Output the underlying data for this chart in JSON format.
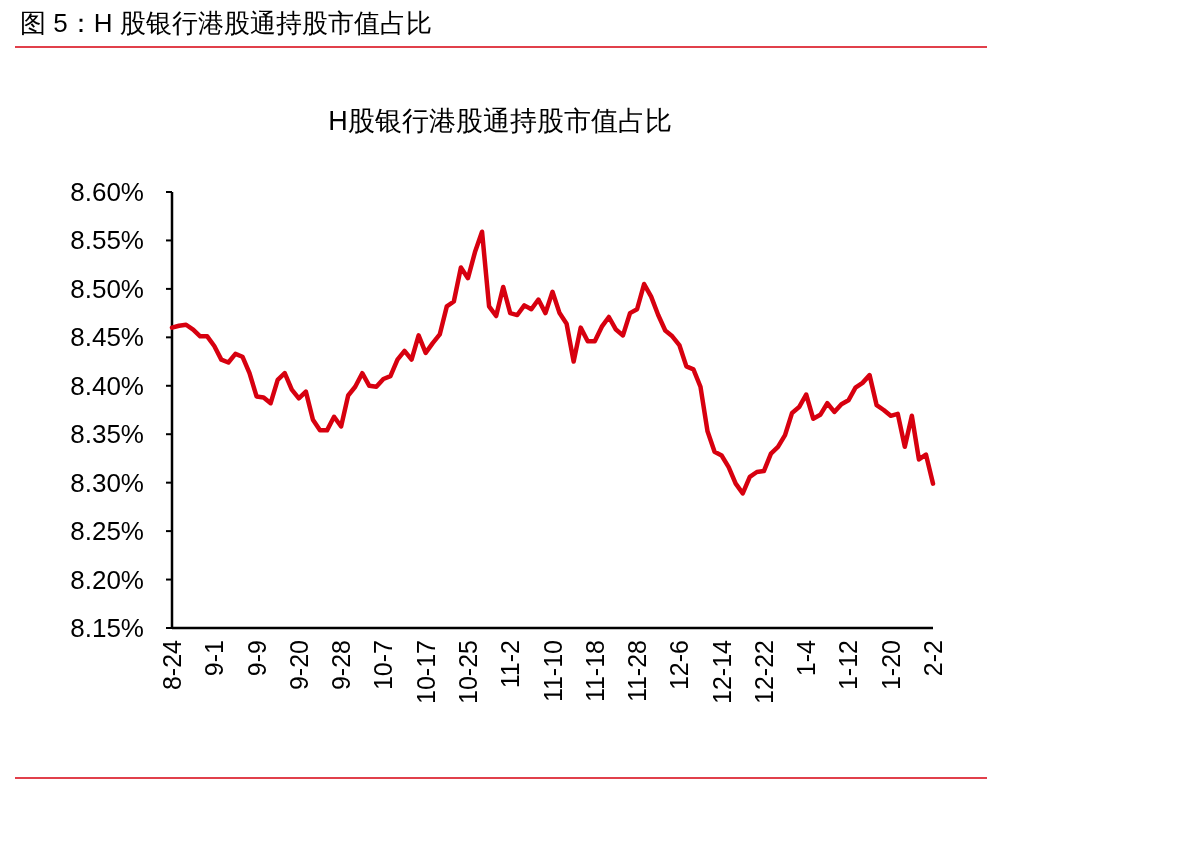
{
  "chart_data": {
    "type": "line",
    "title": "H股银行港股通持股市值占比",
    "annotations": [
      "图 5：H 股银行港股通持股市值占比"
    ],
    "categories": [
      "8-24",
      null,
      null,
      null,
      null,
      null,
      "9-1",
      null,
      null,
      null,
      null,
      null,
      "9-9",
      null,
      null,
      null,
      null,
      null,
      "9-20",
      null,
      null,
      null,
      null,
      null,
      "9-28",
      null,
      null,
      null,
      null,
      null,
      "10-7",
      null,
      null,
      null,
      null,
      null,
      "10-17",
      null,
      null,
      null,
      null,
      null,
      "10-25",
      null,
      null,
      null,
      null,
      null,
      "11-2",
      null,
      null,
      null,
      null,
      null,
      "11-10",
      null,
      null,
      null,
      null,
      null,
      "11-18",
      null,
      null,
      null,
      null,
      null,
      "11-28",
      null,
      null,
      null,
      null,
      null,
      "12-6",
      null,
      null,
      null,
      null,
      null,
      "12-14",
      null,
      null,
      null,
      null,
      null,
      "12-22",
      null,
      null,
      null,
      null,
      null,
      "1-4",
      null,
      null,
      null,
      null,
      null,
      "1-12",
      null,
      null,
      null,
      null,
      null,
      "1-20",
      null,
      null,
      null,
      null,
      null,
      "2-2"
    ],
    "series": [
      {
        "color": "#d7000f",
        "values": [
          8.46,
          8.462,
          8.463,
          8.458,
          8.451,
          8.451,
          8.441,
          8.427,
          8.424,
          8.433,
          8.43,
          8.413,
          8.389,
          8.388,
          8.382,
          8.406,
          8.413,
          8.396,
          8.387,
          8.394,
          8.365,
          8.354,
          8.354,
          8.368,
          8.358,
          8.39,
          8.399,
          8.413,
          8.4,
          8.399,
          8.407,
          8.41,
          8.427,
          8.436,
          8.427,
          8.452,
          8.434,
          8.444,
          8.453,
          8.482,
          8.487,
          8.522,
          8.511,
          8.538,
          8.559,
          8.482,
          8.472,
          8.502,
          8.475,
          8.473,
          8.483,
          8.479,
          8.489,
          8.475,
          8.497,
          8.475,
          8.464,
          8.425,
          8.46,
          8.446,
          8.446,
          8.461,
          8.471,
          8.458,
          8.452,
          8.475,
          8.479,
          8.505,
          8.492,
          8.473,
          8.457,
          8.451,
          8.442,
          8.42,
          8.417,
          8.399,
          8.353,
          8.332,
          8.328,
          8.316,
          8.299,
          8.289,
          8.306,
          8.311,
          8.312,
          8.33,
          8.337,
          8.349,
          8.372,
          8.378,
          8.391,
          8.366,
          8.37,
          8.382,
          8.373,
          8.381,
          8.385,
          8.398,
          8.403,
          8.411,
          8.38,
          8.375,
          8.369,
          8.371,
          8.337,
          8.369,
          8.324,
          8.329,
          8.299
        ]
      }
    ],
    "ylim": [
      8.15,
      8.6
    ],
    "yticks": [
      {
        "value": 8.15,
        "label": "8.15%"
      },
      {
        "value": 8.2,
        "label": "8.20%"
      },
      {
        "value": 8.25,
        "label": "8.25%"
      },
      {
        "value": 8.3,
        "label": "8.30%"
      },
      {
        "value": 8.35,
        "label": "8.35%"
      },
      {
        "value": 8.4,
        "label": "8.40%"
      },
      {
        "value": 8.45,
        "label": "8.45%"
      },
      {
        "value": 8.5,
        "label": "8.50%"
      },
      {
        "value": 8.55,
        "label": "8.55%"
      },
      {
        "value": 8.6,
        "label": "8.60%"
      }
    ]
  }
}
